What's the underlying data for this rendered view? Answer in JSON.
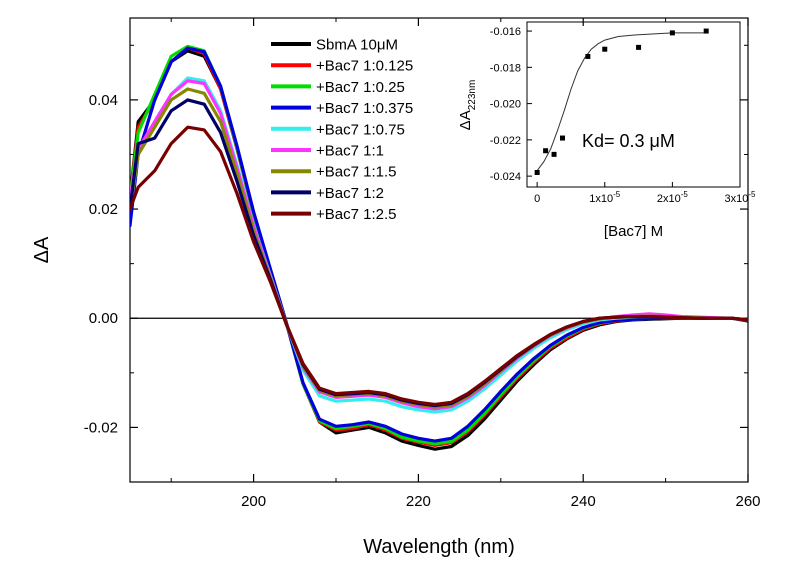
{
  "chart_data": [
    {
      "type": "line",
      "title": "",
      "xlabel": "Wavelength (nm)",
      "ylabel": "ΔA",
      "xlim": [
        185,
        260
      ],
      "ylim": [
        -0.03,
        0.055
      ],
      "x_ticks": [
        200,
        220,
        240,
        260
      ],
      "x_tick_labels": [
        "200",
        "220",
        "240",
        "260"
      ],
      "y_ticks": [
        -0.02,
        0.0,
        0.02,
        0.04
      ],
      "y_tick_labels": [
        "-0.02",
        "0.00",
        "0.02",
        "0.04"
      ],
      "zero_line": true,
      "grid": false,
      "legend_position": "top-center",
      "x": [
        185,
        186,
        188,
        190,
        192,
        194,
        196,
        198,
        200,
        202,
        204,
        206,
        208,
        210,
        212,
        214,
        216,
        218,
        220,
        222,
        224,
        226,
        228,
        230,
        232,
        234,
        236,
        238,
        240,
        242,
        244,
        246,
        248,
        250,
        252,
        254,
        256,
        258,
        260
      ],
      "series": [
        {
          "name": "SbmA 10μM",
          "color": "#000000",
          "values": [
            0.022,
            0.036,
            0.04,
            0.047,
            0.049,
            0.048,
            0.042,
            0.031,
            0.019,
            0.009,
            -0.001,
            -0.012,
            -0.019,
            -0.021,
            -0.0205,
            -0.02,
            -0.021,
            -0.0225,
            -0.0233,
            -0.024,
            -0.0235,
            -0.0215,
            -0.0185,
            -0.015,
            -0.0115,
            -0.0085,
            -0.0058,
            -0.0038,
            -0.0022,
            -0.0012,
            -0.0006,
            -0.0003,
            -0.0002,
            -0.0001,
            0.0,
            0.0,
            0.0,
            0.0,
            -0.0005
          ]
        },
        {
          "name": "+Bac7 1:0.125",
          "color": "#ff0000",
          "values": [
            0.022,
            0.035,
            0.04,
            0.047,
            0.0495,
            0.0485,
            0.042,
            0.031,
            0.019,
            0.009,
            -0.001,
            -0.012,
            -0.019,
            -0.0205,
            -0.0202,
            -0.0195,
            -0.0205,
            -0.022,
            -0.0227,
            -0.0233,
            -0.0228,
            -0.0208,
            -0.0178,
            -0.0144,
            -0.011,
            -0.0081,
            -0.0055,
            -0.0036,
            -0.002,
            -0.001,
            -0.0005,
            -0.0002,
            -0.0001,
            0.0,
            0.0,
            0.0,
            0.0,
            0.0,
            -0.0004
          ]
        },
        {
          "name": "+Bac7 1:0.25",
          "color": "#00dd00",
          "values": [
            0.022,
            0.034,
            0.041,
            0.048,
            0.0498,
            0.049,
            0.0425,
            0.0312,
            0.0192,
            0.009,
            -0.001,
            -0.012,
            -0.0188,
            -0.0202,
            -0.0198,
            -0.0193,
            -0.0202,
            -0.0218,
            -0.0225,
            -0.023,
            -0.0226,
            -0.0205,
            -0.0175,
            -0.014,
            -0.0107,
            -0.0078,
            -0.0052,
            -0.0033,
            -0.0018,
            -0.0009,
            -0.0004,
            -0.0002,
            -0.0001,
            0.0,
            0.0,
            0.0,
            0.0,
            0.0,
            -0.0004
          ]
        },
        {
          "name": "+Bac7 1:0.375",
          "color": "#0000dd",
          "values": [
            0.017,
            0.03,
            0.04,
            0.047,
            0.0495,
            0.0488,
            0.0425,
            0.0315,
            0.0195,
            0.0092,
            -0.001,
            -0.0118,
            -0.0185,
            -0.0198,
            -0.0195,
            -0.019,
            -0.0198,
            -0.0212,
            -0.022,
            -0.0225,
            -0.022,
            -0.0198,
            -0.0168,
            -0.0134,
            -0.0102,
            -0.0074,
            -0.005,
            -0.0031,
            -0.0017,
            -0.0008,
            -0.0004,
            -0.0002,
            -0.0001,
            0.0,
            0.0,
            0.0,
            0.0,
            0.0,
            -0.0004
          ]
        },
        {
          "name": "+Bac7 1:0.75",
          "color": "#33eeee",
          "values": [
            0.02,
            0.03,
            0.036,
            0.041,
            0.044,
            0.0435,
            0.038,
            0.028,
            0.017,
            0.008,
            -0.0012,
            -0.0095,
            -0.0142,
            -0.0152,
            -0.015,
            -0.0148,
            -0.0152,
            -0.0162,
            -0.0168,
            -0.0172,
            -0.0168,
            -0.0152,
            -0.013,
            -0.0104,
            -0.0078,
            -0.0055,
            -0.0036,
            -0.0021,
            -0.001,
            -0.0003,
            0.0,
            0.0002,
            0.0003,
            0.0003,
            0.0002,
            0.0001,
            0.0,
            0.0,
            -0.0003
          ]
        },
        {
          "name": "+Bac7 1:1",
          "color": "#ff33ff",
          "values": [
            0.022,
            0.031,
            0.036,
            0.041,
            0.0435,
            0.043,
            0.0375,
            0.0275,
            0.0168,
            0.0078,
            -0.0012,
            -0.009,
            -0.0135,
            -0.0145,
            -0.0143,
            -0.0141,
            -0.0145,
            -0.0155,
            -0.0162,
            -0.0166,
            -0.0162,
            -0.0146,
            -0.0124,
            -0.0098,
            -0.0073,
            -0.0051,
            -0.0032,
            -0.0018,
            -0.0007,
            -0.0001,
            0.0003,
            0.0006,
            0.0008,
            0.0006,
            0.0003,
            0.0002,
            0.0001,
            0.0,
            -0.0003
          ]
        },
        {
          "name": "+Bac7 1:1.5",
          "color": "#888800",
          "values": [
            0.02,
            0.03,
            0.035,
            0.04,
            0.042,
            0.0412,
            0.036,
            0.0265,
            0.016,
            0.0075,
            -0.0012,
            -0.0088,
            -0.0132,
            -0.0142,
            -0.014,
            -0.0138,
            -0.0142,
            -0.0152,
            -0.0158,
            -0.0163,
            -0.0159,
            -0.0143,
            -0.0121,
            -0.0096,
            -0.0071,
            -0.005,
            -0.0031,
            -0.0017,
            -0.0007,
            -0.0001,
            0.0002,
            0.0003,
            0.0004,
            0.0003,
            0.0002,
            0.0001,
            0.0,
            0.0,
            -0.0003
          ]
        },
        {
          "name": "+Bac7 1:2",
          "color": "#000066",
          "values": [
            0.02,
            0.032,
            0.033,
            0.038,
            0.04,
            0.0392,
            0.034,
            0.025,
            0.0152,
            0.0072,
            -0.0012,
            -0.0085,
            -0.013,
            -0.014,
            -0.0138,
            -0.0136,
            -0.014,
            -0.015,
            -0.0156,
            -0.016,
            -0.0156,
            -0.014,
            -0.0118,
            -0.0094,
            -0.007,
            -0.0049,
            -0.003,
            -0.0016,
            -0.0006,
            0.0,
            0.0002,
            0.0003,
            0.0003,
            0.0002,
            0.0001,
            0.0,
            0.0,
            0.0,
            -0.0003
          ]
        },
        {
          "name": "+Bac7 1:2.5",
          "color": "#770000",
          "values": [
            0.02,
            0.024,
            0.027,
            0.032,
            0.035,
            0.0345,
            0.0305,
            0.0228,
            0.014,
            0.0068,
            -0.0012,
            -0.0083,
            -0.0128,
            -0.0138,
            -0.0136,
            -0.0134,
            -0.0138,
            -0.0148,
            -0.0154,
            -0.0158,
            -0.0154,
            -0.0138,
            -0.0116,
            -0.0092,
            -0.0068,
            -0.0048,
            -0.003,
            -0.0016,
            -0.0006,
            0.0,
            0.0002,
            0.0003,
            0.0003,
            0.0002,
            0.0001,
            0.0,
            0.0,
            0.0,
            -0.0003
          ]
        }
      ]
    },
    {
      "type": "scatter",
      "title": "",
      "xlabel": "[Bac7] M",
      "ylabel_main": "ΔA",
      "ylabel_sub": "223nm",
      "xlim": [
        -1.5e-06,
        3e-05
      ],
      "ylim": [
        -0.0246,
        -0.0155
      ],
      "x_ticks": [
        0,
        1e-05,
        2e-05,
        3e-05
      ],
      "x_tick_labels": [
        {
          "base": "0",
          "exp": ""
        },
        {
          "base": "1x10",
          "exp": "-5"
        },
        {
          "base": "2x10",
          "exp": "-5"
        },
        {
          "base": "3x10",
          "exp": "-5"
        }
      ],
      "y_ticks": [
        -0.024,
        -0.022,
        -0.02,
        -0.018,
        -0.016
      ],
      "y_tick_labels": [
        "-0.024",
        "-0.022",
        "-0.020",
        "-0.018",
        "-0.016"
      ],
      "points": {
        "x": [
          0,
          1.25e-06,
          2.5e-06,
          3.75e-06,
          7.5e-06,
          1e-05,
          1.5e-05,
          2e-05,
          2.5e-05
        ],
        "y": [
          -0.0238,
          -0.0226,
          -0.0228,
          -0.0219,
          -0.0174,
          -0.017,
          -0.0169,
          -0.0161,
          -0.016
        ]
      },
      "fit": {
        "x": [
          0,
          1e-06,
          2e-06,
          3e-06,
          4e-06,
          5e-06,
          6e-06,
          7e-06,
          8e-06,
          9e-06,
          1e-05,
          1.2e-05,
          1.5e-05,
          2e-05,
          2.5e-05
        ],
        "y": [
          -0.0237,
          -0.0232,
          -0.0225,
          -0.0215,
          -0.0204,
          -0.0192,
          -0.0182,
          -0.0175,
          -0.017,
          -0.0167,
          -0.0165,
          -0.0163,
          -0.0162,
          -0.0161,
          -0.0161
        ]
      },
      "annotation": "Kd= 0.3 μM"
    }
  ]
}
